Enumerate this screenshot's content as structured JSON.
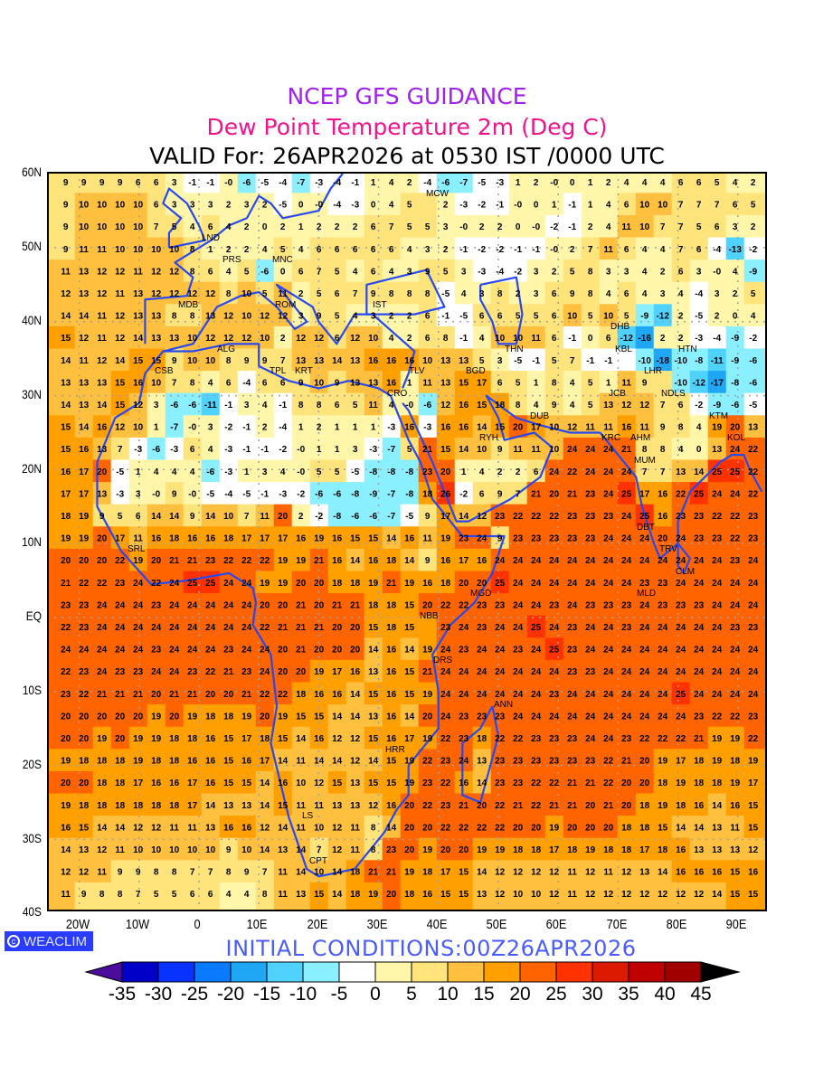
{
  "header": {
    "title": "NCEP GFS GUIDANCE",
    "subtitle": "Dew Point Temperature 2m (Deg C)",
    "valid": "VALID For: 26APR2026 at 0530 IST /0000 UTC"
  },
  "colors": {
    "title": "#a020f0",
    "subtitle": "#f0148c",
    "coast": "#2848f0",
    "initial": "#4a5cff"
  },
  "axes": {
    "lat_labels": [
      "60N",
      "50N",
      "40N",
      "30N",
      "20N",
      "10N",
      "EQ",
      "10S",
      "20S",
      "30S",
      "40S"
    ],
    "lon_labels": [
      "20W",
      "10W",
      "0",
      "10E",
      "20E",
      "30E",
      "40E",
      "50E",
      "60E",
      "70E",
      "80E",
      "90E"
    ]
  },
  "branding": {
    "icon": "copyright-circle-icon",
    "label": "WEACLIM"
  },
  "initial_conditions": "INITIAL CONDITIONS:00Z26APR2026",
  "legend": {
    "labels": [
      "-35",
      "-30",
      "-25",
      "-20",
      "-15",
      "-10",
      "-5",
      "0",
      "5",
      "10",
      "15",
      "20",
      "25",
      "30",
      "35",
      "40",
      "45"
    ],
    "colors": [
      "#4b0b9c",
      "#0000c8",
      "#0a32ff",
      "#0a7bff",
      "#1fa6f5",
      "#50d2ff",
      "#8af0ff",
      "#ffffff",
      "#fff6aa",
      "#ffe47c",
      "#ffc040",
      "#ffa000",
      "#ff6400",
      "#ff3200",
      "#dc1a00",
      "#be0000",
      "#a00000",
      "#000000"
    ]
  },
  "cities": [
    "LND",
    "PRS",
    "MNC",
    "ROM",
    "MDB",
    "ALG",
    "IST",
    "MCW",
    "CSB",
    "TPL",
    "KRT",
    "CRO",
    "TLV",
    "BGD",
    "THN",
    "DHB",
    "HTN",
    "KBL",
    "LHR",
    "JCB",
    "NDLS",
    "KTM",
    "RYH",
    "DUB",
    "KRC",
    "AHM",
    "KOL",
    "MUM",
    "DBT",
    "TRV",
    "CLM",
    "MLD",
    "SRL",
    "MGD",
    "NBB",
    "DRS",
    "ANN",
    "HRR",
    "LS",
    "CPT"
  ],
  "chart_data": {
    "type": "heatmap",
    "title": "Dew Point Temperature 2m (Deg C)",
    "units": "Deg C",
    "lon_range": [
      -25,
      95
    ],
    "lat_range": [
      -40,
      60
    ],
    "grid_rows_north_to_south": [
      [
        9,
        9,
        9,
        9,
        6,
        6,
        3,
        -1,
        -1,
        0,
        -6,
        -5,
        -4,
        -7,
        -3,
        -4,
        -1,
        1,
        4,
        2,
        -4,
        -6,
        -7,
        -5,
        -3,
        1,
        2,
        0,
        0,
        1,
        2,
        4,
        4,
        4,
        6,
        6,
        5,
        4,
        2
      ],
      [
        9,
        10,
        10,
        10,
        10,
        6,
        3,
        3,
        3,
        2,
        3,
        2,
        -5,
        0,
        0,
        -4,
        -3,
        0,
        4,
        5,
        null,
        2,
        -3,
        -2,
        -1,
        0,
        0,
        1,
        -1,
        1,
        4,
        6,
        10,
        10,
        7,
        7,
        7,
        6,
        5
      ],
      [
        9,
        10,
        10,
        10,
        10,
        7,
        5,
        4,
        6,
        4,
        2,
        0,
        2,
        1,
        2,
        2,
        2,
        6,
        7,
        5,
        5,
        3,
        0,
        2,
        2,
        0,
        0,
        -2,
        -1,
        2,
        4,
        11,
        10,
        7,
        7,
        5,
        6,
        3,
        2
      ],
      [
        9,
        11,
        11,
        10,
        10,
        10,
        10,
        8,
        1,
        2,
        2,
        4,
        5,
        4,
        6,
        6,
        6,
        6,
        6,
        4,
        3,
        2,
        -1,
        -2,
        -2,
        -1,
        -1,
        0,
        2,
        7,
        11,
        6,
        4,
        4,
        7,
        6,
        -4,
        -13,
        -2
      ],
      [
        11,
        13,
        12,
        12,
        11,
        12,
        12,
        8,
        6,
        4,
        5,
        -6,
        0,
        6,
        7,
        5,
        4,
        6,
        4,
        3,
        9,
        5,
        3,
        -3,
        -4,
        -2,
        3,
        2,
        5,
        8,
        3,
        3,
        4,
        2,
        6,
        3,
        0,
        4,
        -9
      ],
      [
        12,
        13,
        12,
        11,
        13,
        12,
        12,
        12,
        12,
        8,
        10,
        5,
        11,
        2,
        5,
        6,
        7,
        9,
        8,
        8,
        8,
        -5,
        4,
        3,
        8,
        2,
        3,
        6,
        9,
        8,
        4,
        6,
        4,
        3,
        4,
        -4,
        3,
        2,
        5
      ],
      [
        14,
        14,
        11,
        12,
        13,
        13,
        8,
        8,
        13,
        12,
        10,
        12,
        12,
        3,
        9,
        5,
        4,
        3,
        2,
        2,
        6,
        -1,
        -5,
        6,
        6,
        5,
        5,
        6,
        10,
        5,
        10,
        5,
        -9,
        -12,
        2,
        -5,
        2,
        0,
        4
      ],
      [
        15,
        12,
        11,
        12,
        14,
        13,
        13,
        10,
        12,
        12,
        12,
        10,
        2,
        12,
        12,
        6,
        12,
        10,
        4,
        2,
        6,
        8,
        -1,
        4,
        10,
        10,
        11,
        6,
        -1,
        0,
        6,
        -12,
        -16,
        2,
        2,
        -3,
        -4,
        -9,
        -2
      ],
      [
        14,
        11,
        12,
        14,
        15,
        15,
        9,
        10,
        10,
        8,
        9,
        9,
        7,
        13,
        13,
        14,
        13,
        16,
        16,
        16,
        10,
        13,
        13,
        5,
        3,
        -5,
        -1,
        5,
        7,
        -1,
        -1,
        null,
        -10,
        -18,
        -10,
        -8,
        -11,
        -9,
        -6
      ],
      [
        13,
        13,
        13,
        15,
        16,
        10,
        7,
        8,
        4,
        6,
        -4,
        6,
        6,
        9,
        10,
        9,
        13,
        13,
        16,
        1,
        11,
        13,
        15,
        17,
        6,
        5,
        1,
        8,
        4,
        5,
        1,
        11,
        9,
        null,
        -10,
        -12,
        -17,
        -8,
        -6
      ],
      [
        14,
        13,
        14,
        15,
        12,
        3,
        -6,
        -6,
        -11,
        -1,
        3,
        4,
        -1,
        8,
        8,
        6,
        5,
        11,
        4,
        0,
        -6,
        12,
        16,
        15,
        18,
        8,
        4,
        9,
        4,
        5,
        13,
        12,
        12,
        7,
        6,
        -2,
        -9,
        -6,
        -5
      ],
      [
        15,
        14,
        16,
        12,
        10,
        1,
        -7,
        0,
        3,
        -2,
        -1,
        2,
        -4,
        1,
        2,
        1,
        1,
        1,
        -3,
        16,
        -3,
        16,
        16,
        14,
        15,
        20,
        17,
        10,
        12,
        11,
        11,
        16,
        11,
        9,
        8,
        4,
        19,
        20,
        13
      ],
      [
        15,
        16,
        13,
        7,
        -3,
        -6,
        -3,
        6,
        4,
        -3,
        -1,
        -1,
        -2,
        0,
        1,
        1,
        3,
        -3,
        -7,
        5,
        21,
        15,
        14,
        10,
        9,
        11,
        11,
        10,
        24,
        24,
        24,
        21,
        8,
        8,
        4,
        0,
        13,
        24,
        22
      ],
      [
        16,
        17,
        20,
        -5,
        1,
        4,
        4,
        4,
        -6,
        -3,
        1,
        3,
        4,
        0,
        5,
        5,
        -5,
        -8,
        -8,
        -8,
        23,
        20,
        1,
        4,
        2,
        2,
        6,
        24,
        22,
        24,
        24,
        24,
        7,
        7,
        13,
        14,
        25,
        25,
        22
      ],
      [
        17,
        17,
        13,
        -3,
        3,
        0,
        9,
        0,
        -5,
        -4,
        -5,
        -1,
        -3,
        -2,
        -6,
        -6,
        -8,
        -9,
        -7,
        -8,
        18,
        26,
        -2,
        6,
        9,
        7,
        21,
        20,
        21,
        23,
        24,
        25,
        17,
        16,
        22,
        25,
        24,
        24,
        22
      ],
      [
        18,
        19,
        9,
        5,
        6,
        14,
        14,
        9,
        14,
        10,
        7,
        11,
        20,
        2,
        -2,
        -8,
        -6,
        -6,
        -7,
        -5,
        9,
        17,
        14,
        12,
        23,
        22,
        22,
        22,
        23,
        23,
        23,
        24,
        25,
        16,
        23,
        23,
        22,
        22,
        23
      ],
      [
        19,
        19,
        20,
        17,
        11,
        16,
        18,
        16,
        16,
        18,
        17,
        17,
        17,
        16,
        19,
        16,
        15,
        15,
        14,
        16,
        11,
        19,
        23,
        24,
        9,
        23,
        23,
        23,
        23,
        23,
        24,
        24,
        24,
        20,
        24,
        23,
        23,
        22,
        23
      ],
      [
        20,
        20,
        20,
        22,
        19,
        20,
        21,
        21,
        23,
        22,
        22,
        22,
        19,
        19,
        21,
        16,
        14,
        16,
        18,
        14,
        9,
        16,
        17,
        16,
        24,
        24,
        24,
        24,
        24,
        24,
        24,
        24,
        24,
        24,
        24,
        24,
        24,
        23,
        24
      ],
      [
        21,
        22,
        22,
        23,
        24,
        22,
        24,
        25,
        25,
        24,
        24,
        19,
        19,
        20,
        20,
        18,
        18,
        19,
        21,
        19,
        16,
        18,
        20,
        20,
        25,
        24,
        24,
        24,
        24,
        24,
        24,
        24,
        23,
        23,
        24,
        24,
        24,
        24,
        24
      ],
      [
        23,
        23,
        24,
        24,
        24,
        23,
        24,
        24,
        24,
        24,
        24,
        20,
        20,
        21,
        20,
        21,
        21,
        18,
        18,
        15,
        20,
        22,
        22,
        23,
        23,
        24,
        24,
        23,
        24,
        23,
        23,
        23,
        24,
        23,
        23,
        23,
        24,
        24,
        24
      ],
      [
        22,
        23,
        24,
        24,
        24,
        24,
        24,
        24,
        24,
        24,
        24,
        22,
        21,
        21,
        21,
        20,
        20,
        15,
        18,
        15,
        null,
        23,
        24,
        23,
        24,
        24,
        25,
        24,
        23,
        24,
        24,
        23,
        24,
        24,
        24,
        24,
        24,
        23,
        23
      ],
      [
        24,
        24,
        24,
        24,
        24,
        23,
        24,
        24,
        24,
        23,
        24,
        24,
        20,
        21,
        20,
        20,
        20,
        14,
        16,
        14,
        19,
        24,
        23,
        24,
        24,
        23,
        24,
        25,
        23,
        24,
        24,
        24,
        24,
        24,
        24,
        24,
        24,
        24,
        24
      ],
      [
        22,
        23,
        24,
        23,
        23,
        24,
        24,
        23,
        22,
        21,
        23,
        24,
        20,
        20,
        19,
        17,
        16,
        13,
        16,
        15,
        21,
        24,
        24,
        24,
        24,
        24,
        24,
        24,
        23,
        23,
        24,
        24,
        24,
        24,
        24,
        24,
        24,
        24,
        24
      ],
      [
        23,
        22,
        21,
        21,
        21,
        20,
        21,
        21,
        20,
        20,
        21,
        22,
        22,
        18,
        16,
        16,
        14,
        15,
        16,
        15,
        19,
        24,
        24,
        24,
        24,
        24,
        24,
        23,
        24,
        24,
        24,
        24,
        24,
        24,
        25,
        24,
        24,
        24,
        24
      ],
      [
        20,
        20,
        20,
        20,
        20,
        19,
        20,
        19,
        18,
        18,
        19,
        20,
        19,
        15,
        15,
        14,
        14,
        13,
        16,
        14,
        20,
        24,
        23,
        23,
        23,
        24,
        24,
        24,
        24,
        24,
        24,
        24,
        24,
        24,
        24,
        23,
        22,
        22,
        23
      ],
      [
        20,
        20,
        19,
        20,
        19,
        19,
        18,
        18,
        16,
        15,
        17,
        18,
        15,
        14,
        16,
        12,
        12,
        15,
        16,
        17,
        19,
        22,
        23,
        18,
        22,
        22,
        23,
        23,
        23,
        24,
        24,
        23,
        22,
        22,
        22,
        21,
        19,
        19,
        22
      ],
      [
        19,
        18,
        18,
        18,
        19,
        18,
        18,
        16,
        16,
        15,
        16,
        17,
        14,
        11,
        14,
        14,
        12,
        14,
        15,
        19,
        22,
        23,
        24,
        13,
        23,
        23,
        23,
        23,
        23,
        23,
        22,
        21,
        20,
        19,
        17,
        18,
        19,
        18,
        19
      ],
      [
        20,
        20,
        18,
        18,
        17,
        16,
        16,
        17,
        16,
        15,
        15,
        14,
        16,
        10,
        12,
        15,
        13,
        15,
        15,
        19,
        23,
        22,
        16,
        14,
        23,
        23,
        22,
        22,
        21,
        21,
        22,
        20,
        20,
        18,
        19,
        18,
        18,
        19,
        17
      ],
      [
        19,
        18,
        18,
        18,
        18,
        18,
        18,
        17,
        14,
        13,
        13,
        14,
        15,
        11,
        11,
        13,
        13,
        12,
        16,
        20,
        22,
        23,
        21,
        20,
        22,
        21,
        22,
        21,
        21,
        20,
        21,
        20,
        18,
        19,
        18,
        16,
        14,
        16,
        15
      ],
      [
        16,
        15,
        14,
        14,
        12,
        12,
        11,
        11,
        13,
        16,
        16,
        12,
        14,
        11,
        10,
        12,
        11,
        8,
        14,
        20,
        20,
        22,
        22,
        22,
        22,
        20,
        20,
        19,
        20,
        20,
        20,
        18,
        18,
        15,
        14,
        14,
        13,
        11,
        15
      ],
      [
        14,
        13,
        12,
        11,
        10,
        10,
        10,
        10,
        10,
        9,
        10,
        14,
        13,
        14,
        7,
        12,
        11,
        8,
        23,
        20,
        19,
        20,
        20,
        19,
        19,
        18,
        18,
        17,
        18,
        19,
        18,
        18,
        17,
        18,
        16,
        13,
        13,
        13,
        12
      ],
      [
        12,
        12,
        11,
        9,
        9,
        8,
        8,
        7,
        7,
        8,
        9,
        7,
        11,
        14,
        10,
        14,
        18,
        21,
        21,
        19,
        18,
        17,
        15,
        14,
        12,
        12,
        12,
        12,
        11,
        12,
        11,
        12,
        13,
        14,
        16,
        16,
        16,
        15,
        16
      ],
      [
        11,
        9,
        8,
        8,
        7,
        5,
        5,
        6,
        6,
        4,
        4,
        8,
        11,
        13,
        15,
        14,
        18,
        19,
        20,
        18,
        16,
        15,
        15,
        13,
        12,
        10,
        10,
        12,
        11,
        12,
        12,
        12,
        12,
        12,
        12,
        12,
        14,
        15,
        15
      ]
    ],
    "colorbar_levels": [
      -35,
      -30,
      -25,
      -20,
      -15,
      -10,
      -5,
      0,
      5,
      10,
      15,
      20,
      25,
      30,
      35,
      40,
      45
    ]
  }
}
